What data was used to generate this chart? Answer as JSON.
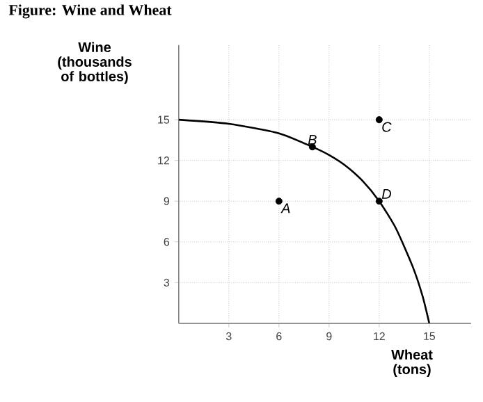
{
  "chart_data": {
    "type": "line",
    "title": "Figure: Wine and Wheat",
    "xlabel": "Wheat (tons)",
    "ylabel": "Wine (thousands of bottles)",
    "xlim": [
      0,
      17.5
    ],
    "ylim": [
      0,
      20.5
    ],
    "xticks": [
      3,
      6,
      9,
      12,
      15
    ],
    "yticks": [
      3,
      6,
      9,
      12,
      15
    ],
    "grid": true,
    "series": [
      {
        "color": "#000000",
        "marker": "none",
        "x": [
          0,
          3,
          6,
          8,
          9,
          10,
          11,
          12,
          13,
          14,
          14.6,
          15
        ],
        "values": [
          15,
          14.7,
          14,
          13,
          12.4,
          11.6,
          10.5,
          9,
          7,
          4.2,
          2,
          0
        ]
      },
      {
        "type": "scatter",
        "color": "#000000",
        "marker": "circle",
        "x": [
          6,
          8,
          12,
          12
        ],
        "values": [
          9,
          13,
          15,
          9
        ]
      }
    ],
    "annotations": [
      {
        "text": "A",
        "x": 6,
        "y": 9
      },
      {
        "text": "B",
        "x": 8,
        "y": 13
      },
      {
        "text": "C",
        "x": 12,
        "y": 15
      },
      {
        "text": "D",
        "x": 12,
        "y": 9
      }
    ]
  }
}
